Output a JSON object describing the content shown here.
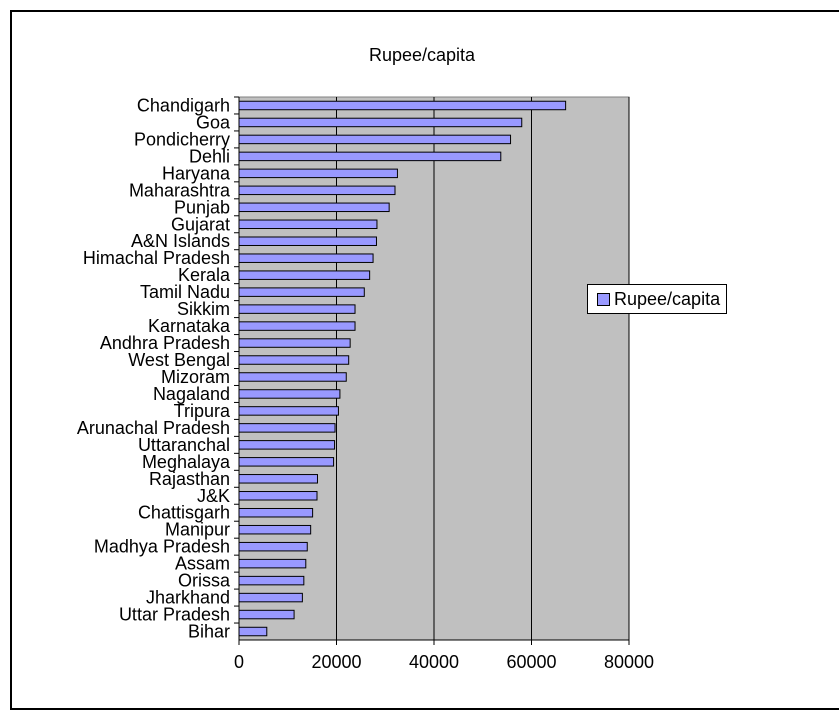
{
  "chart_data": {
    "type": "bar",
    "orientation": "horizontal",
    "title": "Rupee/capita",
    "xlabel": "",
    "ylabel": "",
    "xlim": [
      0,
      80000
    ],
    "x_ticks": [
      0,
      20000,
      40000,
      60000,
      80000
    ],
    "grid": true,
    "plot_background": "#c0c0c0",
    "bar_color": "#9999ff",
    "legend": {
      "position": "right",
      "entries": [
        "Rupee/capita"
      ]
    },
    "categories": [
      "Chandigarh",
      "Goa",
      "Pondicherry",
      "Dehli",
      "Haryana",
      "Maharashtra",
      "Punjab",
      "Gujarat",
      "A&N Islands",
      "Himachal Pradesh",
      "Kerala",
      "Tamil Nadu",
      "Sikkim",
      "Karnataka",
      "Andhra Pradesh",
      "West Bengal",
      "Mizoram",
      "Nagaland",
      "Tripura",
      "Arunachal Pradesh",
      "Uttaranchal",
      "Meghalaya",
      "Rajasthan",
      "J&K",
      "Chattisgarh",
      "Manipur",
      "Madhya Pradesh",
      "Assam",
      "Orissa",
      "Jharkhand",
      "Uttar Pradesh",
      "Bihar"
    ],
    "series": [
      {
        "name": "Rupee/capita",
        "values": [
          67000,
          58000,
          55700,
          53700,
          32500,
          32000,
          30800,
          28300,
          28200,
          27500,
          26800,
          25700,
          23800,
          23800,
          22800,
          22500,
          22000,
          20700,
          20400,
          19700,
          19600,
          19400,
          16100,
          16000,
          15100,
          14700,
          14000,
          13700,
          13300,
          13000,
          11300,
          5700
        ]
      }
    ]
  }
}
